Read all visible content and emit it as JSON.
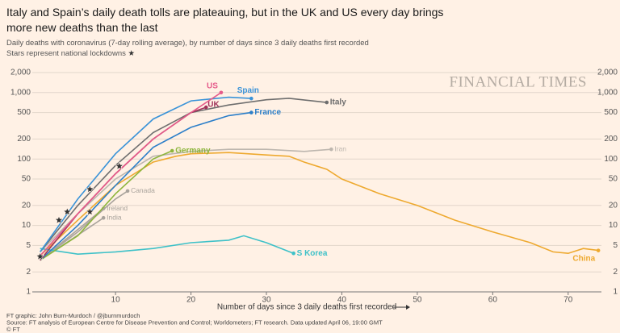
{
  "chart_data": {
    "type": "line",
    "title": "Italy and Spain’s daily death tolls are plateauing, but in the UK and US every day brings more new deaths than the last",
    "subtitle": [
      "Daily deaths with coronavirus (7-day rolling average), by number of days since 3 daily deaths first recorded",
      "Stars represent national lockdowns"
    ],
    "x_label": "Number of days since 3 daily deaths first recorded",
    "watermark": "FINANCIAL TIMES",
    "footer": [
      "FT graphic: John Burn-Murdoch / @jburnmurdoch",
      "Source: FT analysis of European Centre for Disease Prevention and Control; Worldometers; FT research. Data updated April 06, 19:00 GMT",
      "© FT"
    ],
    "log_y": true,
    "grid": true,
    "xlim": [
      -0.5,
      75
    ],
    "xticks": [
      10,
      20,
      30,
      40,
      50,
      60,
      70
    ],
    "ylim": [
      1,
      2000
    ],
    "yticks": [
      1,
      2,
      5,
      10,
      20,
      50,
      100,
      200,
      500,
      {
        "value": 1000,
        "label": "1,000"
      },
      {
        "value": 2000,
        "label": "2,000"
      }
    ],
    "series": [
      {
        "name": "Iran",
        "color": "#bdb6ae",
        "x": [
          0,
          5,
          10,
          15,
          20,
          25,
          30,
          35,
          38.6
        ],
        "values": [
          4,
          15,
          50,
          110,
          130,
          140,
          140,
          130,
          140
        ]
      },
      {
        "name": "Canada",
        "color": "#a9a39c",
        "x": [
          0,
          5,
          10,
          11.6
        ],
        "values": [
          3,
          8,
          25,
          33
        ]
      },
      {
        "name": "Ireland",
        "color": "#a9a39c",
        "x": [
          0,
          4,
          8.4
        ],
        "values": [
          3,
          7,
          18
        ]
      },
      {
        "name": "India",
        "color": "#a9a39c",
        "x": [
          0,
          4,
          8.4
        ],
        "values": [
          3,
          6,
          13
        ]
      },
      {
        "name": "China",
        "color": "#eea92f",
        "x": [
          0,
          5,
          10,
          15,
          18,
          20,
          25,
          30,
          33,
          35,
          38,
          40,
          45,
          50,
          55,
          60,
          65,
          68,
          70,
          72,
          74
        ],
        "values": [
          3.5,
          12,
          40,
          90,
          110,
          120,
          125,
          115,
          110,
          90,
          70,
          50,
          30,
          20,
          12,
          8,
          5.5,
          4,
          3.8,
          4.5,
          4.2
        ]
      },
      {
        "name": "S Korea",
        "color": "#3ec1c8",
        "x": [
          0,
          5,
          10,
          15,
          20,
          25,
          27,
          30,
          33.6
        ],
        "values": [
          4.5,
          3.7,
          4,
          4.5,
          5.5,
          6,
          7,
          5.5,
          3.8
        ]
      },
      {
        "name": "Italy",
        "color": "#6e6e6e",
        "x": [
          0,
          5,
          10,
          15,
          20,
          25,
          30,
          33,
          38
        ],
        "values": [
          4,
          20,
          80,
          250,
          500,
          650,
          780,
          820,
          710
        ]
      },
      {
        "name": "Germany",
        "color": "#8db53c",
        "x": [
          0,
          5,
          10,
          15,
          17.5
        ],
        "values": [
          3,
          7,
          30,
          100,
          133
        ]
      },
      {
        "name": "France",
        "color": "#2c7fc9",
        "x": [
          0,
          5,
          10,
          15,
          20,
          25,
          28
        ],
        "values": [
          3,
          10,
          40,
          150,
          300,
          450,
          500
        ]
      },
      {
        "name": "Spain",
        "color": "#3a93d8",
        "x": [
          0,
          5,
          10,
          15,
          20,
          25,
          28
        ],
        "values": [
          4,
          25,
          120,
          400,
          750,
          850,
          815
        ]
      },
      {
        "name": "UK",
        "color": "#a0325a",
        "x": [
          0,
          5,
          10,
          15,
          20,
          22
        ],
        "values": [
          3,
          15,
          60,
          200,
          500,
          600
        ]
      },
      {
        "name": "US",
        "color": "#e55a8a",
        "x": [
          0,
          5,
          10,
          15,
          20,
          24
        ],
        "values": [
          3.5,
          15,
          60,
          200,
          500,
          1000
        ]
      }
    ],
    "lockdowns": {
      "x": [
        0,
        2.5,
        3.6,
        6.6,
        6.6,
        10.5
      ],
      "values": [
        3.4,
        12,
        16,
        35,
        16,
        78
      ]
    }
  }
}
